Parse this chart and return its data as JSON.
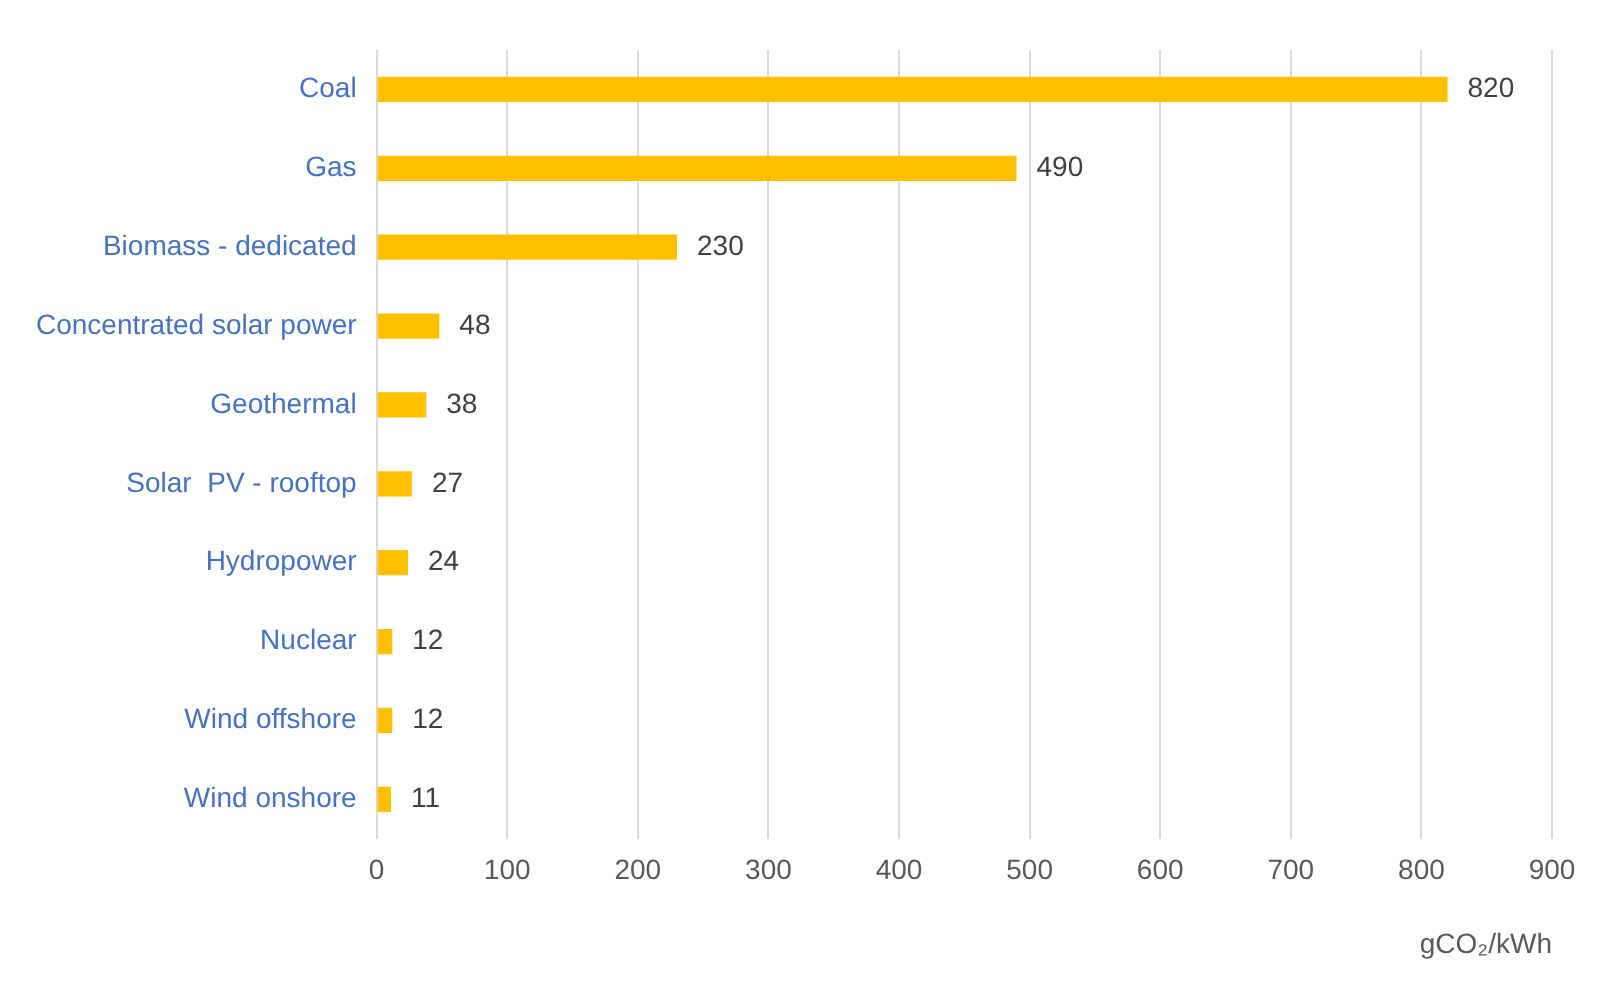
{
  "chart_data": {
    "type": "bar",
    "orientation": "horizontal",
    "xlabel": "gCO₂/kWh",
    "categories": [
      "Coal",
      "Gas",
      "Biomass - dedicated",
      "Concentrated solar power",
      "Geothermal",
      "Solar  PV - rooftop",
      "Hydropower",
      "Nuclear",
      "Wind offshore",
      "Wind onshore"
    ],
    "values": [
      820,
      490,
      230,
      48,
      38,
      27,
      24,
      12,
      12,
      11
    ],
    "color": "#ffc000",
    "xlim": [
      0,
      900
    ],
    "xticks": [
      0,
      100,
      200,
      300,
      400,
      500,
      600,
      700,
      800,
      900
    ],
    "grid": "x",
    "data_labels": true,
    "legend": false
  }
}
